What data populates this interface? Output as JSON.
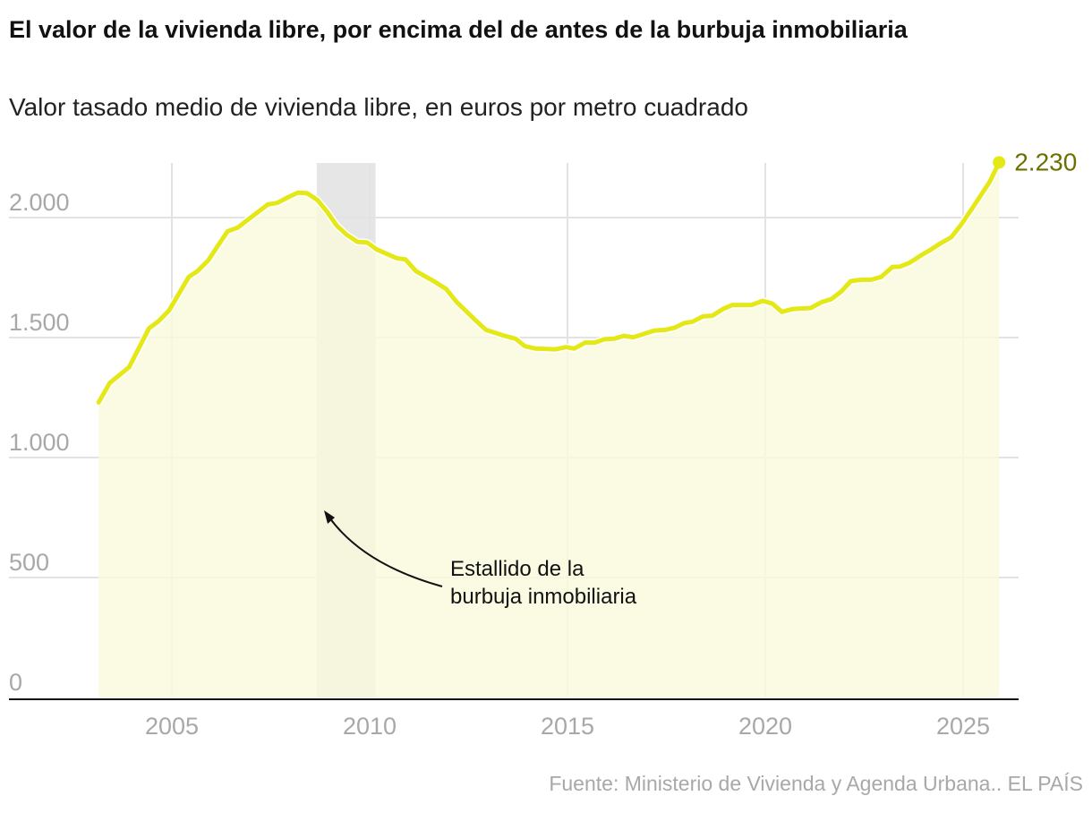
{
  "title": "El valor de la vivienda libre, por encima del de antes de la burbuja inmobiliaria",
  "subtitle": "Valor tasado medio de vivienda libre, en euros por metro cuadrado",
  "source": "Fuente: Ministerio de Vivienda y Agenda Urbana.. EL PAÍS",
  "colors": {
    "line": "#e5e817",
    "fill": "#fafadc",
    "band": "#e6e6e6",
    "end_label": "#6b7000"
  },
  "chart_data": {
    "type": "area",
    "title": "",
    "xlabel": "",
    "ylabel": "",
    "xlim": [
      2001.3,
      2027.3
    ],
    "ylim": [
      0,
      2230
    ],
    "grid": true,
    "x_ticks": [
      2005,
      2010,
      2015,
      2020,
      2025
    ],
    "x_tick_labels": [
      "2005",
      "2010",
      "2015",
      "2020",
      "2025"
    ],
    "y_ticks": [
      0,
      500,
      1000,
      1500,
      2000
    ],
    "y_tick_labels": [
      "0",
      "500",
      "1.000",
      "1.500",
      "2.000"
    ],
    "end_label": "2.230",
    "highlight_band": {
      "from": 2008.66,
      "to": 2010.15
    },
    "annotation": {
      "lines": [
        "Estallido de la",
        "burbuja inmobiliaria"
      ]
    },
    "x": [
      2003.15,
      2003.43,
      2003.92,
      2004.42,
      2004.65,
      2004.93,
      2005.43,
      2005.65,
      2005.92,
      2006.18,
      2006.41,
      2006.66,
      2007.13,
      2007.43,
      2007.66,
      2007.95,
      2008.19,
      2008.42,
      2008.68,
      2008.93,
      2009.16,
      2009.41,
      2009.69,
      2009.94,
      2010.17,
      2010.68,
      2010.91,
      2011.17,
      2011.66,
      2011.93,
      2012.2,
      2012.67,
      2012.94,
      2013.41,
      2013.69,
      2013.92,
      2014.19,
      2014.7,
      2014.97,
      2015.17,
      2015.45,
      2015.69,
      2015.94,
      2016.18,
      2016.42,
      2016.66,
      2017.19,
      2017.47,
      2017.71,
      2017.95,
      2018.16,
      2018.42,
      2018.66,
      2018.93,
      2019.17,
      2019.65,
      2019.94,
      2020.18,
      2020.42,
      2020.7,
      2021.15,
      2021.43,
      2021.67,
      2021.92,
      2022.16,
      2022.44,
      2022.68,
      2022.93,
      2023.21,
      2023.41,
      2023.65,
      2023.94,
      2024.18,
      2024.46,
      2024.7,
      2024.94,
      2025.22,
      2025.67,
      2025.91
    ],
    "y": [
      1230,
      1311,
      1377,
      1538,
      1566,
      1613,
      1753,
      1777,
      1822,
      1887,
      1943,
      1958,
      2017,
      2055,
      2061,
      2086,
      2104,
      2101,
      2073,
      2023,
      1968,
      1930,
      1899,
      1896,
      1868,
      1831,
      1825,
      1777,
      1731,
      1703,
      1648,
      1573,
      1532,
      1507,
      1495,
      1464,
      1454,
      1451,
      1460,
      1454,
      1479,
      1479,
      1493,
      1495,
      1507,
      1501,
      1529,
      1532,
      1541,
      1560,
      1566,
      1588,
      1591,
      1619,
      1636,
      1636,
      1653,
      1641,
      1607,
      1619,
      1623,
      1648,
      1660,
      1692,
      1735,
      1741,
      1741,
      1753,
      1794,
      1796,
      1812,
      1843,
      1866,
      1896,
      1918,
      1968,
      2036,
      2148,
      2230
    ]
  }
}
